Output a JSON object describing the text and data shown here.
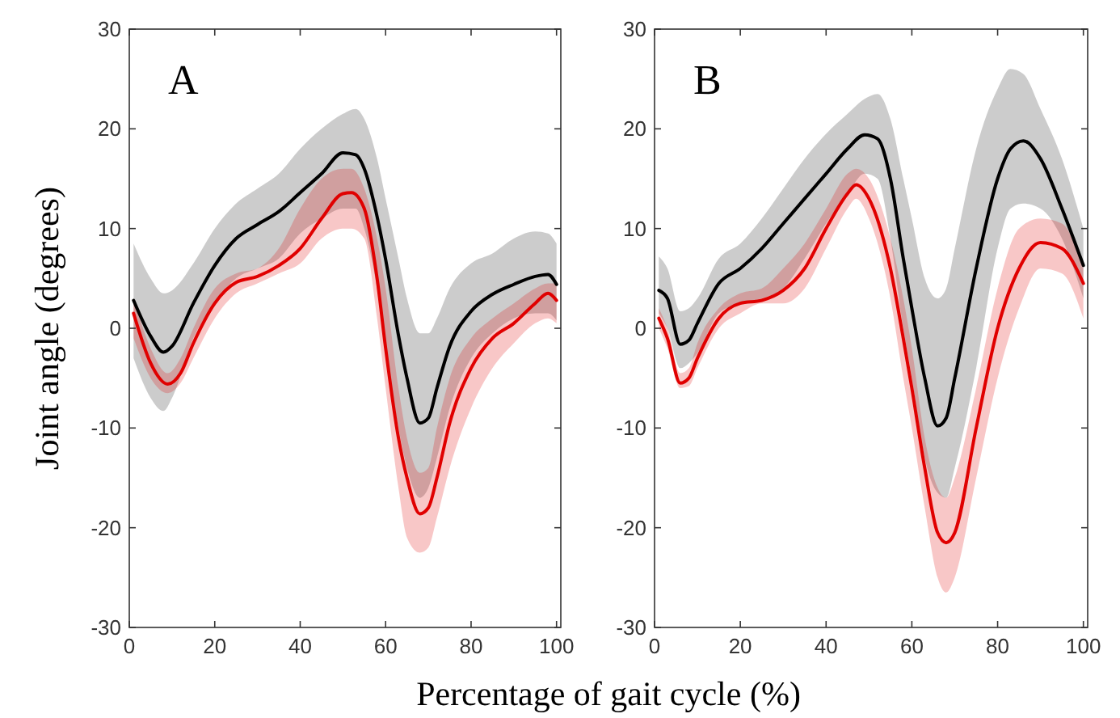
{
  "chart_data": [
    {
      "type": "line",
      "title": "A",
      "ylabel": "Joint angle (degrees)",
      "xlabel": "Percentage of gait cycle (%)",
      "xlim": [
        0,
        101
      ],
      "ylim": [
        -30,
        30
      ],
      "xticks": [
        0,
        20,
        40,
        60,
        80,
        100
      ],
      "yticks": [
        -30,
        -20,
        -10,
        0,
        10,
        20,
        30
      ],
      "grid": false,
      "marker": "none",
      "line_style": "solid",
      "series": [
        {
          "color": "#000000",
          "x": [
            1,
            5,
            8,
            10,
            15,
            20,
            25,
            30,
            35,
            40,
            45,
            50,
            53,
            55,
            58,
            60,
            63,
            65,
            68,
            70,
            72,
            75,
            80,
            85,
            90,
            95,
            98,
            100
          ],
          "values": [
            2.8,
            -0.8,
            -2.4,
            -1.8,
            2.5,
            6.3,
            9,
            10.4,
            11.7,
            13.6,
            15.5,
            17.6,
            17.4,
            16,
            11.2,
            6.9,
            -0.7,
            -5,
            -9.5,
            -9,
            -6,
            -1.8,
            1.7,
            3.4,
            4.4,
            5.2,
            5.4,
            4.4
          ],
          "lower": [
            -3,
            -7,
            -8.3,
            -7,
            -1,
            2.5,
            5,
            6,
            7,
            9.5,
            11,
            12,
            12,
            10,
            4,
            -2,
            -10,
            -14,
            -17,
            -16,
            -13,
            -8,
            -3,
            -0.5,
            1,
            1.5,
            1.5,
            0.8
          ],
          "upper": [
            8.5,
            5,
            3.5,
            3.8,
            6.5,
            10,
            12.5,
            14,
            15.5,
            18,
            20,
            21.5,
            22,
            21,
            17,
            13,
            7,
            3,
            -0.5,
            -0.5,
            1,
            4,
            6.5,
            7.5,
            9,
            9.7,
            9.5,
            8.5
          ]
        },
        {
          "color": "#e00000",
          "x": [
            1,
            5,
            9,
            12,
            15,
            20,
            25,
            30,
            35,
            40,
            45,
            50,
            52,
            55,
            58,
            60,
            63,
            65,
            68,
            70,
            72,
            75,
            80,
            85,
            90,
            95,
            98,
            100
          ],
          "values": [
            1.5,
            -3.5,
            -5.6,
            -4.5,
            -1.5,
            2.5,
            4.6,
            5.2,
            6.3,
            8,
            11,
            13.5,
            13.6,
            12,
            5,
            -2,
            -11,
            -15,
            -18.6,
            -18,
            -15,
            -9.5,
            -4,
            -1,
            0.5,
            2.5,
            3.5,
            2.8
          ],
          "lower": [
            -1,
            -5,
            -6.5,
            -5.5,
            -3,
            1,
            3.5,
            4.5,
            5.5,
            6.5,
            9,
            10,
            10,
            9,
            1,
            -6,
            -16,
            -21,
            -22.5,
            -22,
            -19,
            -14,
            -8,
            -4,
            -1.5,
            0.5,
            1,
            0.5
          ],
          "upper": [
            3,
            -2,
            -4.5,
            -3,
            0,
            4,
            5.5,
            6,
            8,
            12,
            15,
            16,
            16,
            14,
            9,
            4,
            -6,
            -11,
            -14.5,
            -14,
            -10,
            -5,
            -1,
            1,
            2.5,
            4,
            4.5,
            4.5
          ]
        }
      ]
    },
    {
      "type": "line",
      "title": "B",
      "xlim": [
        0,
        101
      ],
      "ylim": [
        -30,
        30
      ],
      "xticks": [
        0,
        20,
        40,
        60,
        80,
        100
      ],
      "yticks": [
        -30,
        -20,
        -10,
        0,
        10,
        20,
        30
      ],
      "grid": false,
      "marker": "none",
      "line_style": "solid",
      "series": [
        {
          "color": "#000000",
          "x": [
            1,
            3,
            6,
            8,
            10,
            15,
            20,
            25,
            30,
            35,
            40,
            45,
            49,
            52,
            55,
            58,
            60,
            63,
            66,
            68,
            70,
            75,
            80,
            83,
            86,
            90,
            95,
            100
          ],
          "values": [
            3.8,
            3,
            -1.6,
            -1.2,
            0.5,
            4.5,
            6,
            8,
            10.5,
            13,
            15.5,
            18,
            19.4,
            19,
            15,
            7,
            2,
            -5,
            -9.8,
            -9,
            -5,
            6,
            15,
            18,
            18.8,
            17,
            12,
            6.3
          ],
          "lower": [
            1.5,
            0,
            -4,
            -3.5,
            -2.5,
            1.5,
            2.5,
            3,
            4,
            7,
            10.5,
            13.5,
            15.5,
            15,
            9,
            0,
            -5,
            -13,
            -16.5,
            -17,
            -14,
            -4,
            8,
            12,
            12.5,
            12,
            9,
            3
          ],
          "upper": [
            7.2,
            6,
            1.7,
            2,
            3,
            7,
            8.5,
            11,
            14,
            17,
            19.5,
            21.5,
            23,
            23.5,
            21,
            15,
            11,
            5,
            3,
            4,
            8,
            18,
            24,
            26,
            25.5,
            22,
            17,
            10
          ]
        },
        {
          "color": "#e00000",
          "x": [
            1,
            3,
            6,
            8,
            10,
            15,
            20,
            25,
            30,
            35,
            40,
            45,
            47,
            50,
            55,
            58,
            60,
            63,
            66,
            68,
            70,
            75,
            80,
            85,
            90,
            95,
            100
          ],
          "values": [
            1,
            -1,
            -5.5,
            -5,
            -3,
            1,
            2.5,
            2.8,
            3.8,
            6,
            10,
            13.5,
            14.4,
            13,
            6,
            -1,
            -6,
            -14,
            -20.5,
            -21.5,
            -20.5,
            -10,
            0,
            6,
            8.6,
            8,
            4.5
          ],
          "lower": [
            0,
            -2,
            -6,
            -5.8,
            -4,
            0,
            1.5,
            2.5,
            2.5,
            4,
            8,
            12,
            13,
            11,
            3,
            -5,
            -10,
            -18,
            -25,
            -26.5,
            -25,
            -15,
            -5,
            2,
            6,
            5.5,
            1
          ],
          "upper": [
            2,
            0,
            -4.5,
            -4,
            -1.5,
            2,
            3.5,
            4,
            6,
            8.5,
            12,
            15.5,
            16,
            15,
            9,
            3,
            -2,
            -11,
            -16,
            -17,
            -15,
            -6,
            4,
            10,
            11,
            10.5,
            6
          ]
        }
      ]
    }
  ]
}
